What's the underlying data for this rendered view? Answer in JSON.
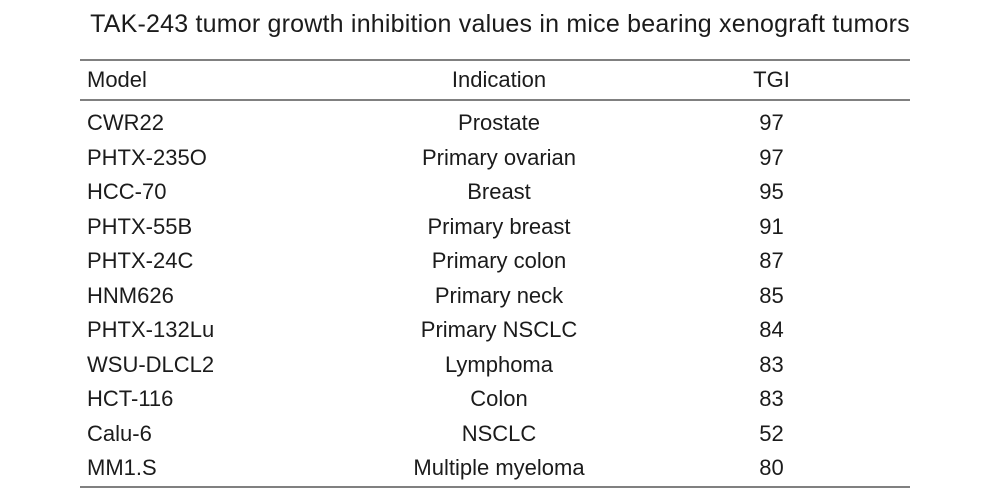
{
  "chart_data": {
    "type": "table",
    "title": "TAK-243 tumor growth inhibition values in mice bearing xenograft tumors",
    "columns": [
      "Model",
      "Indication",
      "TGI"
    ],
    "rows": [
      [
        "CWR22",
        "Prostate",
        97
      ],
      [
        "PHTX-235O",
        "Primary ovarian",
        97
      ],
      [
        "HCC-70",
        "Breast",
        95
      ],
      [
        "PHTX-55B",
        "Primary breast",
        91
      ],
      [
        "PHTX-24C",
        "Primary colon",
        87
      ],
      [
        "HNM626",
        "Primary neck",
        85
      ],
      [
        "PHTX-132Lu",
        "Primary NSCLC",
        84
      ],
      [
        "WSU-DLCL2",
        "Lymphoma",
        83
      ],
      [
        "HCT-116",
        "Colon",
        83
      ],
      [
        "Calu-6",
        "NSCLC",
        52
      ],
      [
        "MM1.S",
        "Multiple myeloma",
        80
      ]
    ],
    "layout": {
      "rule_color": "#808080",
      "text_color": "#1b1b1b",
      "background": "#ffffff",
      "grid": "horizontal-rules-only",
      "column_alignment": [
        "left",
        "center",
        "center"
      ]
    }
  }
}
